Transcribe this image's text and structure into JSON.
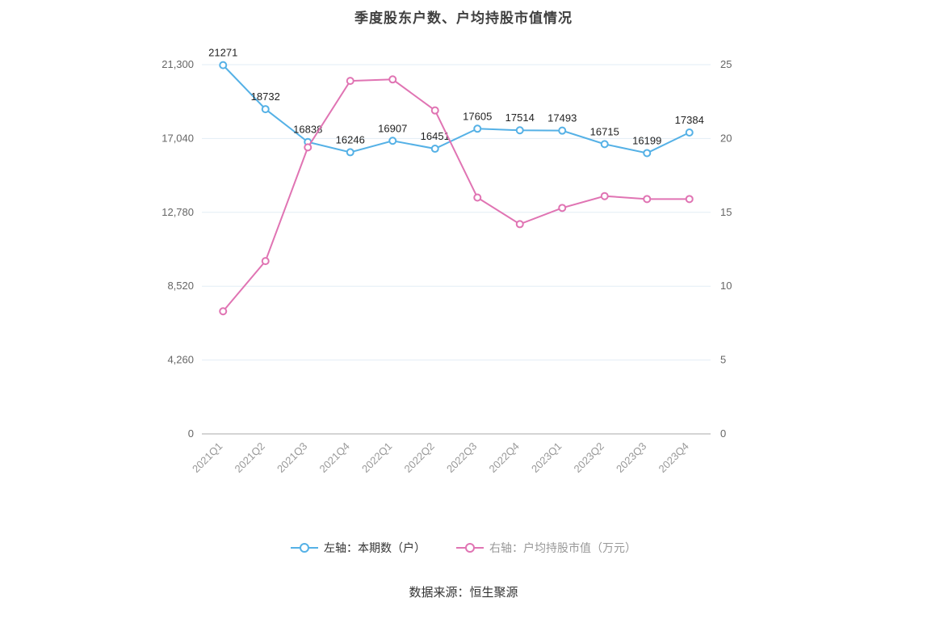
{
  "title": "季度股东户数、户均持股市值情况",
  "footer": "数据来源：恒生聚源",
  "legend": {
    "items": [
      {
        "label": "左轴：本期数（户）",
        "color": "#55b1e6"
      },
      {
        "label": "右轴：户均持股市值（万元）",
        "color": "#e074b3"
      }
    ]
  },
  "chart_data": {
    "type": "line",
    "categories": [
      "2021Q1",
      "2021Q2",
      "2021Q3",
      "2021Q4",
      "2022Q1",
      "2022Q2",
      "2022Q3",
      "2022Q4",
      "2023Q1",
      "2023Q2",
      "2023Q3",
      "2023Q4"
    ],
    "series": [
      {
        "name": "左轴：本期数（户）",
        "axis": "left",
        "color": "#55b1e6",
        "values": [
          21271,
          18732,
          16838,
          16246,
          16907,
          16451,
          17605,
          17514,
          17493,
          16715,
          16199,
          17384
        ],
        "show_labels": true
      },
      {
        "name": "右轴：户均持股市值（万元）",
        "axis": "right",
        "color": "#e074b3",
        "values": [
          8.3,
          11.7,
          19.4,
          23.9,
          24.0,
          21.9,
          16.0,
          14.2,
          15.3,
          16.1,
          15.9,
          15.9
        ],
        "show_labels": false
      }
    ],
    "left_axis": {
      "min": 0,
      "max": 21300,
      "tick_values": [
        0,
        4260,
        8520,
        12780,
        17040,
        21300
      ],
      "tick_labels": [
        "0",
        "4,260",
        "8,520",
        "12,780",
        "17,040",
        "21,300"
      ]
    },
    "right_axis": {
      "min": 0,
      "max": 25,
      "tick_values": [
        0,
        5,
        10,
        15,
        20,
        25
      ],
      "tick_labels": [
        "0",
        "5",
        "10",
        "15",
        "20",
        "25"
      ]
    },
    "grid": true,
    "legend_position": "bottom",
    "title": "季度股东户数、户均持股市值情况",
    "colors": {
      "grid_line": "#e2edf6",
      "axis_line": "#aaaaaa",
      "axis_tick_text": "#666666",
      "x_label_text": "#999999",
      "data_label_text": "#222222"
    }
  }
}
